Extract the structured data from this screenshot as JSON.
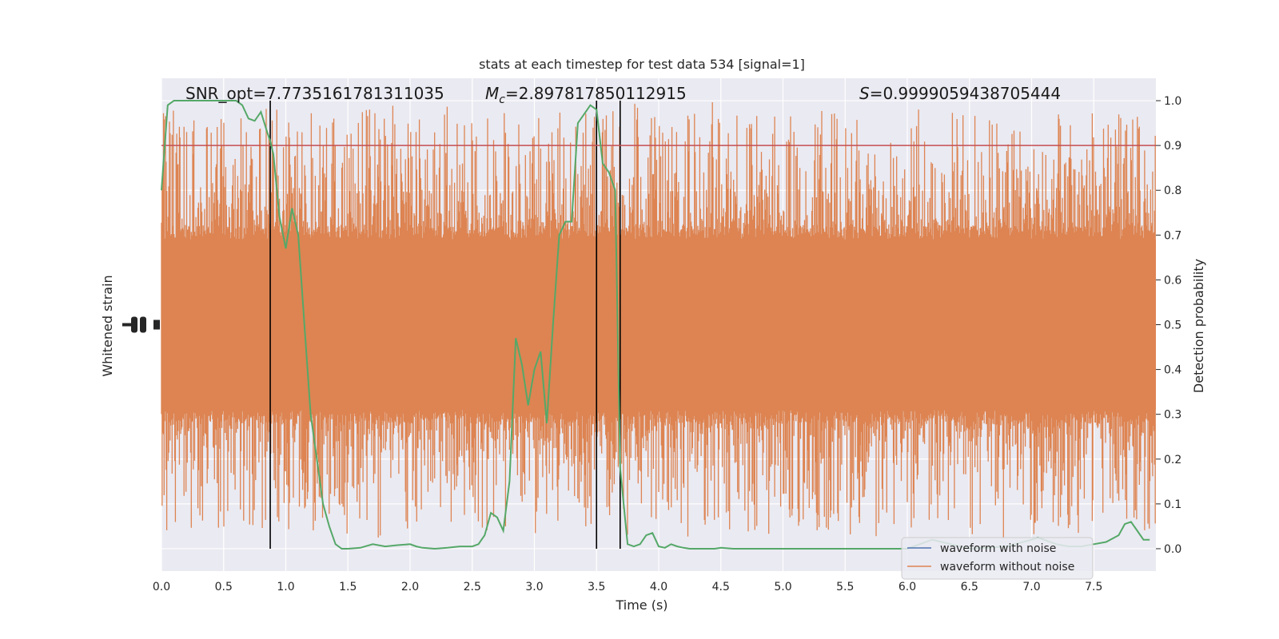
{
  "chart_data": {
    "type": "line",
    "title": "stats at each timestep for test data 534 [signal=1]",
    "xlabel": "Time (s)",
    "ylabel_left": "Whitened strain",
    "ylabel_right": "Detection probability",
    "xlim": [
      0,
      8
    ],
    "ylim_right": [
      -0.05,
      1.05
    ],
    "xticks": [
      "0.0",
      "0.5",
      "1.0",
      "1.5",
      "2.0",
      "2.5",
      "3.0",
      "3.5",
      "4.0",
      "4.5",
      "5.0",
      "5.5",
      "6.0",
      "6.5",
      "7.0",
      "7.5"
    ],
    "yticks_right": [
      "0.0",
      "0.1",
      "0.2",
      "0.3",
      "0.4",
      "0.5",
      "0.6",
      "0.7",
      "0.8",
      "0.9",
      "1.0"
    ],
    "grid": true,
    "annotations": {
      "snr": "SNR_opt=7.7735161781311035",
      "mc_symbol": "M",
      "mc_sub": "c",
      "mc_value": "=2.897817850112915",
      "s_symbol": "S",
      "s_value": "=0.9999059438705444"
    },
    "threshold": {
      "y": 0.9,
      "color": "#c44e52"
    },
    "vlines": [
      0.875,
      3.5,
      3.69
    ],
    "legend": {
      "position": "lower-right",
      "entries": [
        "waveform with noise",
        "waveform without noise"
      ]
    },
    "colors": {
      "noise": "#4c72b0",
      "clean": "#dd8452",
      "prob": "#55a868",
      "bg": "#eaeaf2"
    },
    "series": [
      {
        "name": "Detection probability",
        "x": [
          0,
          0.05,
          0.1,
          0.15,
          0.2,
          0.3,
          0.4,
          0.5,
          0.6,
          0.65,
          0.7,
          0.75,
          0.8,
          0.85,
          0.875,
          0.9,
          0.95,
          1.0,
          1.05,
          1.1,
          1.15,
          1.2,
          1.25,
          1.3,
          1.35,
          1.4,
          1.45,
          1.5,
          1.6,
          1.7,
          1.8,
          1.9,
          2.0,
          2.05,
          2.1,
          2.2,
          2.3,
          2.4,
          2.5,
          2.55,
          2.6,
          2.65,
          2.7,
          2.75,
          2.8,
          2.85,
          2.9,
          2.95,
          3.0,
          3.05,
          3.1,
          3.15,
          3.2,
          3.25,
          3.3,
          3.35,
          3.4,
          3.45,
          3.5,
          3.55,
          3.6,
          3.65,
          3.69,
          3.75,
          3.8,
          3.85,
          3.9,
          3.95,
          4.0,
          4.05,
          4.1,
          4.15,
          4.2,
          4.25,
          4.3,
          4.35,
          4.4,
          4.45,
          4.5,
          4.6,
          4.8,
          5.0,
          5.2,
          5.5,
          5.8,
          6.0,
          6.2,
          6.5,
          6.8,
          7.0,
          7.05,
          7.1,
          7.2,
          7.3,
          7.4,
          7.5,
          7.6,
          7.7,
          7.75,
          7.8,
          7.85,
          7.9,
          7.95
        ],
        "y": [
          0.8,
          0.99,
          1.0,
          1.0,
          1.0,
          1.0,
          1.0,
          1.0,
          1.0,
          0.99,
          0.96,
          0.955,
          0.975,
          0.93,
          0.91,
          0.88,
          0.74,
          0.67,
          0.76,
          0.7,
          0.5,
          0.3,
          0.2,
          0.1,
          0.05,
          0.01,
          0.0,
          0.0,
          0.002,
          0.01,
          0.005,
          0.008,
          0.01,
          0.005,
          0.002,
          0.0,
          0.002,
          0.005,
          0.005,
          0.01,
          0.03,
          0.08,
          0.07,
          0.04,
          0.15,
          0.47,
          0.41,
          0.32,
          0.4,
          0.44,
          0.28,
          0.5,
          0.7,
          0.73,
          0.73,
          0.95,
          0.97,
          0.99,
          0.98,
          0.86,
          0.84,
          0.8,
          0.18,
          0.01,
          0.005,
          0.01,
          0.03,
          0.035,
          0.005,
          0.002,
          0.01,
          0.005,
          0.002,
          0.0,
          0.0,
          0.0,
          0.0,
          0.0,
          0.002,
          0.0,
          0.0,
          0.0,
          0.0,
          0.0,
          0.0,
          0.0,
          0.02,
          0.0,
          0.005,
          0.02,
          0.025,
          0.02,
          0.01,
          0.005,
          0.005,
          0.01,
          0.015,
          0.03,
          0.055,
          0.06,
          0.04,
          0.02,
          0.02
        ]
      },
      {
        "name": "waveform without noise",
        "type": "noise-band",
        "note_values_right_axis_equivalent": {
          "core_low": 0.31,
          "core_high": 0.69,
          "max": 1.0,
          "min": 0.02
        }
      }
    ]
  }
}
